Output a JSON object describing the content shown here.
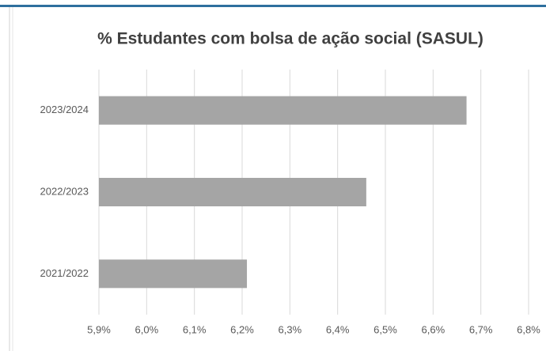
{
  "chart_data": {
    "type": "bar",
    "orientation": "horizontal",
    "title": "% Estudantes com bolsa de ação social (SASUL)",
    "categories": [
      "2023/2024",
      "2022/2023",
      "2021/2022"
    ],
    "values": [
      6.67,
      6.46,
      6.21
    ],
    "color": "#a5a5a5",
    "xlim": [
      5.9,
      6.8
    ],
    "xticks": [
      {
        "value": 5.9,
        "label": "5,9%"
      },
      {
        "value": 6.0,
        "label": "6,0%"
      },
      {
        "value": 6.1,
        "label": "6,1%"
      },
      {
        "value": 6.2,
        "label": "6,2%"
      },
      {
        "value": 6.3,
        "label": "6,3%"
      },
      {
        "value": 6.4,
        "label": "6,4%"
      },
      {
        "value": 6.5,
        "label": "6,5%"
      },
      {
        "value": 6.6,
        "label": "6,6%"
      },
      {
        "value": 6.7,
        "label": "6,7%"
      },
      {
        "value": 6.8,
        "label": "6,8%"
      }
    ],
    "grid": true
  }
}
